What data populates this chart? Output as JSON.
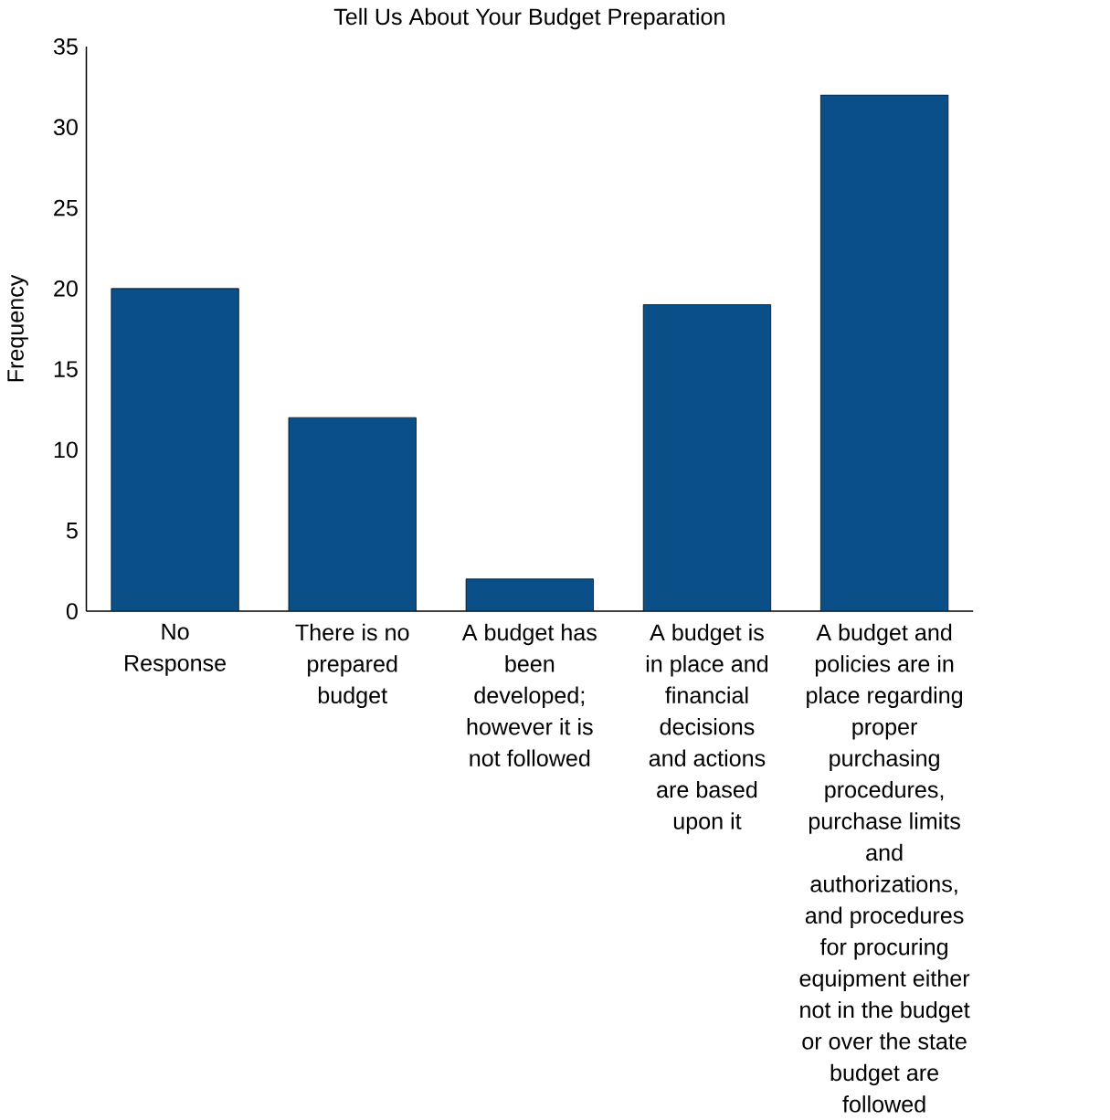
{
  "chart_data": {
    "type": "bar",
    "title": "Tell Us About Your Budget Preparation",
    "ylabel": "Frequency",
    "categories": [
      "No Response",
      "There is no prepared budget",
      "A budget has been developed; however it is not followed",
      "A budget is in place and financial decisions and actions are based upon it",
      "A budget and policies are in place regarding proper purchasing procedures, purchase limits and authorizations, and procedures for procuring equipment either not in the budget or over the state budget are followed"
    ],
    "values": [
      20,
      12,
      2,
      19,
      32
    ],
    "color": "#0a4f87",
    "ylim": [
      0,
      35
    ],
    "yticks": [
      0,
      5,
      10,
      15,
      20,
      25,
      30,
      35
    ]
  }
}
